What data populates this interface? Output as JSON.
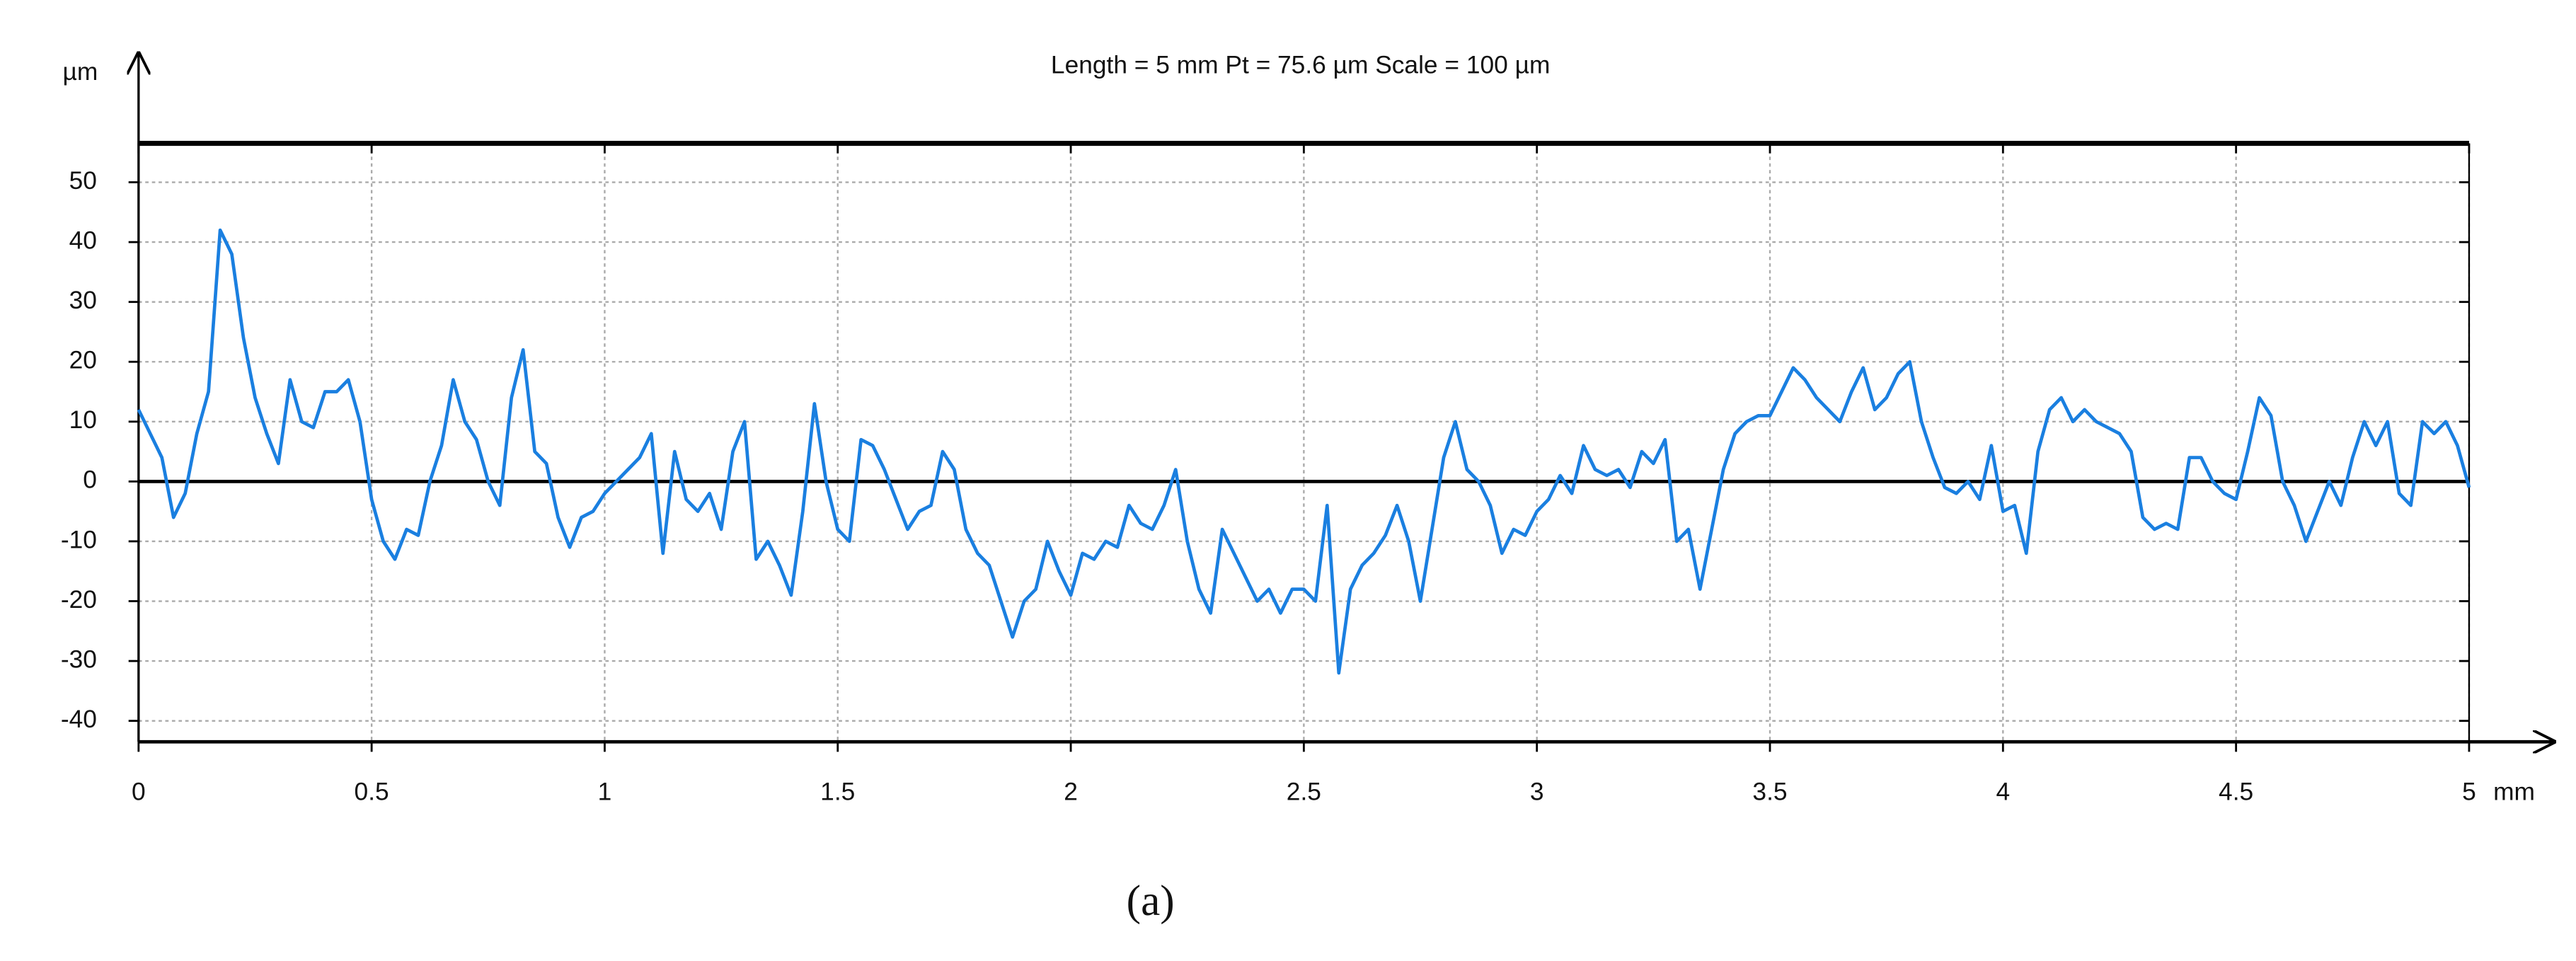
{
  "chart_data": {
    "type": "line",
    "title": "Length = 5 mm  Pt = 75.6 µm  Scale = 100 µm",
    "x_label": "mm",
    "y_label": "µm",
    "xlim": [
      0,
      5
    ],
    "ylim": [
      -43.5,
      56.5
    ],
    "xticks": [
      0,
      0.5,
      1,
      1.5,
      2,
      2.5,
      3,
      3.5,
      4,
      4.5,
      5
    ],
    "yticks": [
      -40,
      -30,
      -20,
      -10,
      0,
      10,
      20,
      30,
      40,
      50
    ],
    "grid": true,
    "x": [
      0,
      0.025,
      0.05,
      0.075,
      0.1,
      0.125,
      0.15,
      0.175,
      0.2,
      0.225,
      0.25,
      0.275,
      0.3,
      0.325,
      0.35,
      0.375,
      0.4,
      0.425,
      0.45,
      0.475,
      0.5,
      0.525,
      0.55,
      0.575,
      0.6,
      0.625,
      0.65,
      0.675,
      0.7,
      0.725,
      0.75,
      0.775,
      0.8,
      0.825,
      0.85,
      0.875,
      0.9,
      0.925,
      0.95,
      0.975,
      1,
      1.025,
      1.05,
      1.075,
      1.1,
      1.125,
      1.15,
      1.175,
      1.2,
      1.225,
      1.25,
      1.275,
      1.3,
      1.325,
      1.35,
      1.375,
      1.4,
      1.425,
      1.45,
      1.475,
      1.5,
      1.525,
      1.55,
      1.575,
      1.6,
      1.625,
      1.65,
      1.675,
      1.7,
      1.725,
      1.75,
      1.775,
      1.8,
      1.825,
      1.85,
      1.875,
      1.9,
      1.925,
      1.95,
      1.975,
      2,
      2.025,
      2.05,
      2.075,
      2.1,
      2.125,
      2.15,
      2.175,
      2.2,
      2.225,
      2.25,
      2.275,
      2.3,
      2.325,
      2.35,
      2.375,
      2.4,
      2.425,
      2.45,
      2.475,
      2.5,
      2.525,
      2.55,
      2.575,
      2.6,
      2.625,
      2.65,
      2.675,
      2.7,
      2.725,
      2.75,
      2.775,
      2.8,
      2.825,
      2.85,
      2.875,
      2.9,
      2.925,
      2.95,
      2.975,
      3,
      3.025,
      3.05,
      3.075,
      3.1,
      3.125,
      3.15,
      3.175,
      3.2,
      3.225,
      3.25,
      3.275,
      3.3,
      3.325,
      3.35,
      3.375,
      3.4,
      3.425,
      3.45,
      3.475,
      3.5,
      3.525,
      3.55,
      3.575,
      3.6,
      3.625,
      3.65,
      3.675,
      3.7,
      3.725,
      3.75,
      3.775,
      3.8,
      3.825,
      3.85,
      3.875,
      3.9,
      3.925,
      3.95,
      3.975,
      4,
      4.025,
      4.05,
      4.075,
      4.1,
      4.125,
      4.15,
      4.175,
      4.2,
      4.225,
      4.25,
      4.275,
      4.3,
      4.325,
      4.35,
      4.375,
      4.4,
      4.425,
      4.45,
      4.475,
      4.5,
      4.525,
      4.55,
      4.575,
      4.6,
      4.625,
      4.65,
      4.675,
      4.7,
      4.725,
      4.75,
      4.775,
      4.8,
      4.825,
      4.85,
      4.875,
      4.9,
      4.925,
      4.95,
      4.975,
      5
    ],
    "series": [
      {
        "color": "#1a7fe0",
        "values": [
          12,
          8,
          4,
          -6,
          -2,
          8,
          15,
          42,
          38,
          24,
          14,
          8,
          3,
          17,
          10,
          9,
          15,
          15,
          17,
          10,
          -3,
          -10,
          -13,
          -8,
          -9,
          0,
          6,
          17,
          10,
          7,
          0,
          -4,
          14,
          22,
          5,
          3,
          -6,
          -11,
          -6,
          -5,
          -2,
          0,
          2,
          4,
          8,
          -12,
          5,
          -3,
          -5,
          -2,
          -8,
          5,
          10,
          -13,
          -10,
          -14,
          -19,
          -5,
          13,
          0,
          -8,
          -10,
          7,
          6,
          2,
          -3,
          -8,
          -5,
          -4,
          5,
          2,
          -8,
          -12,
          -14,
          -20,
          -26,
          -20,
          -18,
          -10,
          -15,
          -19,
          -12,
          -13,
          -10,
          -11,
          -4,
          -7,
          -8,
          -4,
          2,
          -10,
          -18,
          -22,
          -8,
          -12,
          -16,
          -20,
          -18,
          -22,
          -18,
          -18,
          -20,
          -4,
          -32,
          -18,
          -14,
          -12,
          -9,
          -4,
          -10,
          -20,
          -8,
          4,
          10,
          2,
          0,
          -4,
          -12,
          -8,
          -9,
          -5,
          -3,
          1,
          -2,
          6,
          2,
          1,
          2,
          -1,
          5,
          3,
          7,
          -10,
          -8,
          -18,
          -8,
          2,
          8,
          10,
          11,
          11,
          15,
          19,
          17,
          14,
          12,
          10,
          15,
          19,
          12,
          14,
          18,
          20,
          10,
          4,
          -1,
          -2,
          0,
          -3,
          6,
          -5,
          -4,
          -12,
          5,
          12,
          14,
          10,
          12,
          10,
          9,
          8,
          5,
          -6,
          -8,
          -7,
          -8,
          4,
          4,
          0,
          -2,
          -3,
          5,
          14,
          11,
          0,
          -4,
          -10,
          -5,
          0,
          -4,
          4,
          10,
          6,
          10,
          -2,
          -4,
          10,
          8,
          10,
          6,
          -1
        ]
      }
    ]
  },
  "caption": "(a)"
}
